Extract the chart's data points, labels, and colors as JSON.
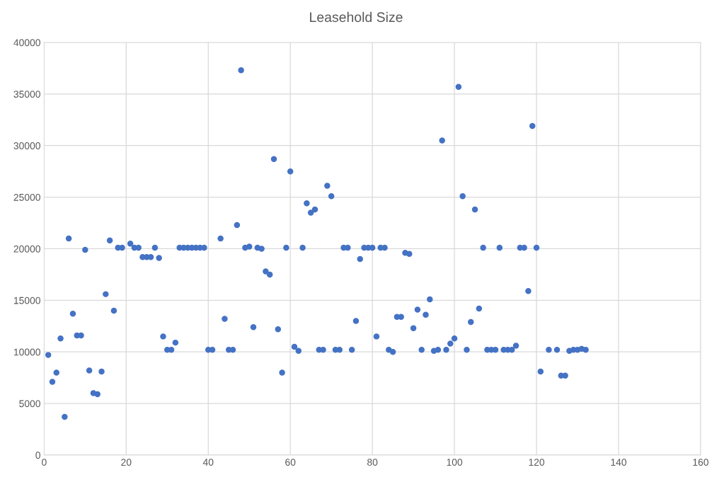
{
  "chart_data": {
    "type": "scatter",
    "title": "Leasehold Size",
    "marker": "circle",
    "grid": true,
    "xlim": [
      0,
      160
    ],
    "xticks": [
      0,
      20,
      40,
      60,
      80,
      100,
      120,
      140,
      160
    ],
    "ylim": [
      0,
      40000
    ],
    "yticks": [
      0,
      5000,
      10000,
      15000,
      20000,
      25000,
      30000,
      35000,
      40000
    ],
    "series": [
      {
        "color": "#4472c4",
        "x": [
          1,
          2,
          3,
          4,
          5,
          6,
          7,
          8,
          9,
          10,
          11,
          12,
          13,
          14,
          15,
          16,
          17,
          18,
          19,
          21,
          22,
          23,
          24,
          25,
          26,
          27,
          28,
          29,
          30,
          31,
          32,
          33,
          34,
          35,
          36,
          37,
          38,
          39,
          40,
          41,
          43,
          44,
          45,
          46,
          47,
          48,
          49,
          50,
          51,
          52,
          53,
          54,
          55,
          56,
          57,
          58,
          59,
          60,
          61,
          62,
          63,
          64,
          65,
          66,
          67,
          68,
          69,
          70,
          71,
          72,
          73,
          74,
          75,
          76,
          77,
          78,
          79,
          80,
          81,
          82,
          83,
          84,
          85,
          86,
          87,
          88,
          89,
          90,
          91,
          92,
          93,
          94,
          95,
          96,
          97,
          98,
          99,
          100,
          101,
          102,
          103,
          104,
          105,
          106,
          107,
          108,
          109,
          110,
          111,
          112,
          113,
          114,
          115,
          116,
          117,
          118,
          119,
          120,
          121,
          123,
          125,
          126,
          127,
          128,
          129,
          130,
          131,
          132
        ],
        "values": [
          9700,
          7100,
          8000,
          11300,
          3700,
          21000,
          13700,
          11600,
          11600,
          19900,
          8200,
          6000,
          5900,
          8100,
          15600,
          20800,
          14000,
          20100,
          20100,
          20500,
          20100,
          20100,
          19200,
          19200,
          19200,
          20100,
          19100,
          11500,
          10200,
          10200,
          10900,
          20100,
          20100,
          20100,
          20100,
          20100,
          20100,
          20100,
          10200,
          10200,
          21000,
          13200,
          10200,
          10200,
          22300,
          37300,
          20100,
          20200,
          12400,
          20100,
          20000,
          17800,
          17500,
          28700,
          12200,
          8000,
          20100,
          27500,
          10500,
          10100,
          20100,
          24400,
          23500,
          23800,
          10200,
          10200,
          26100,
          25100,
          10200,
          10200,
          20100,
          20100,
          10200,
          13000,
          19000,
          20100,
          20100,
          20100,
          11500,
          20100,
          20100,
          10200,
          10000,
          13400,
          13400,
          19600,
          19500,
          12300,
          14100,
          10200,
          13600,
          15100,
          10100,
          10200,
          30500,
          10200,
          10800,
          11300,
          35700,
          25100,
          10200,
          12900,
          23800,
          14200,
          20100,
          10200,
          10200,
          10200,
          20100,
          10200,
          10200,
          10200,
          10600,
          20100,
          20100,
          15900,
          31900,
          20100,
          8100,
          10200,
          10200,
          7700,
          7700,
          10100,
          10200,
          10200,
          10300,
          10200
        ]
      }
    ]
  }
}
